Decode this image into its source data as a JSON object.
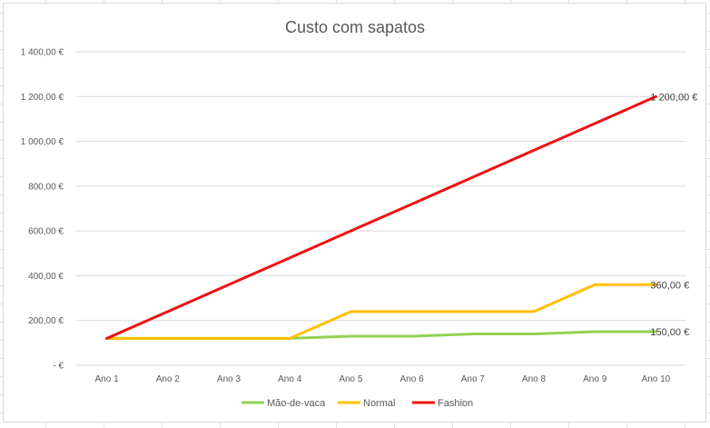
{
  "chart_data": {
    "type": "line",
    "title": "Custo com sapatos",
    "categories": [
      "Ano 1",
      "Ano 2",
      "Ano 3",
      "Ano 4",
      "Ano 5",
      "Ano 6",
      "Ano 7",
      "Ano 8",
      "Ano 9",
      "Ano 10"
    ],
    "y_tick_labels": [
      "-  €",
      "200,00 €",
      "400,00 €",
      "600,00 €",
      "800,00 €",
      "1 000,00 €",
      "1 200,00 €",
      "1 400,00 €"
    ],
    "ylim": [
      0,
      1400
    ],
    "y_step": 200,
    "grid": true,
    "legend_position": "bottom",
    "series": [
      {
        "name": "Mão-de-vaca",
        "color": "#92d050",
        "values": [
          120,
          120,
          120,
          120,
          130,
          130,
          140,
          140,
          150,
          150
        ],
        "end_label": "150,00 €"
      },
      {
        "name": "Normal",
        "color": "#ffc000",
        "values": [
          120,
          120,
          120,
          120,
          240,
          240,
          240,
          240,
          360,
          360
        ],
        "end_label": "360,00 €"
      },
      {
        "name": "Fashion",
        "color": "#ee1111",
        "values": [
          120,
          240,
          360,
          480,
          600,
          720,
          840,
          960,
          1080,
          1200
        ],
        "end_label": "1 200,00 €"
      }
    ]
  }
}
